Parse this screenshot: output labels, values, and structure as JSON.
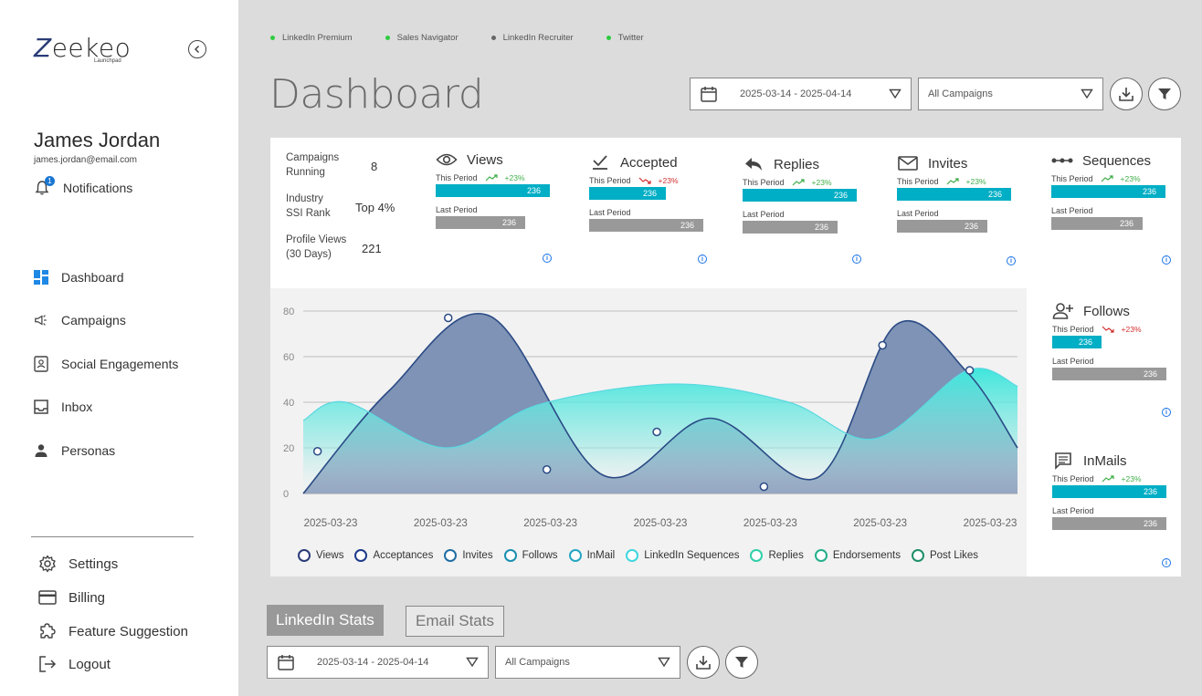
{
  "sidebar": {
    "logo_text": "eekeo",
    "logo_letter": "Z",
    "logo_sub": "Launchpad",
    "user_name": "James Jordan",
    "user_email": "james.jordan@email.com",
    "notifications_label": "Notifications",
    "notifications_count": "1",
    "nav": [
      {
        "label": "Dashboard",
        "icon": "dashboard-icon"
      },
      {
        "label": "Campaigns",
        "icon": "megaphone-icon"
      },
      {
        "label": "Social Engagements",
        "icon": "badge-icon"
      },
      {
        "label": "Inbox",
        "icon": "inbox-icon"
      },
      {
        "label": "Personas",
        "icon": "person-icon"
      }
    ],
    "bottom": [
      {
        "label": "Settings",
        "icon": "gear-icon"
      },
      {
        "label": "Billing",
        "icon": "card-icon"
      },
      {
        "label": "Feature Suggestion",
        "icon": "puzzle-icon"
      },
      {
        "label": "Logout",
        "icon": "logout-icon"
      }
    ]
  },
  "sources": [
    {
      "label": "LinkedIn Premium",
      "color": "#2ecc40"
    },
    {
      "label": "Sales Navigator",
      "color": "#2ecc40"
    },
    {
      "label": "LinkedIn Recruiter",
      "color": "#666666"
    },
    {
      "label": "Twitter",
      "color": "#2ecc40"
    }
  ],
  "header": {
    "title": "Dashboard",
    "date_range": "2025-03-14 - 2025-04-14",
    "campaign_select": "All Campaigns"
  },
  "kpis": [
    {
      "label_1": "Campaigns",
      "label_2": "Running",
      "value": "8"
    },
    {
      "label_1": "Industry",
      "label_2": "SSI Rank",
      "value": "Top 4%"
    },
    {
      "label_1": "Profile Views",
      "label_2": "(30 Days)",
      "value": "221"
    }
  ],
  "metrics": [
    {
      "name": "Views",
      "icon": "eye-icon",
      "this_label": "This Period",
      "change": "+23%",
      "trend": "up",
      "this_value": "236",
      "last_label": "Last Period",
      "last_value": "236"
    },
    {
      "name": "Accepted",
      "icon": "check-icon",
      "this_label": "This Period",
      "change": "+23%",
      "trend": "down",
      "this_value": "236",
      "last_label": "Last Period",
      "last_value": "236"
    },
    {
      "name": "Replies",
      "icon": "reply-icon",
      "this_label": "This Period",
      "change": "+23%",
      "trend": "up",
      "this_value": "236",
      "last_label": "Last Period",
      "last_value": "236"
    },
    {
      "name": "Invites",
      "icon": "mail-icon",
      "this_label": "This Period",
      "change": "+23%",
      "trend": "up",
      "this_value": "236",
      "last_label": "Last Period",
      "last_value": "236"
    },
    {
      "name": "Sequences",
      "icon": "sequence-icon",
      "this_label": "This Period",
      "change": "+23%",
      "trend": "up",
      "this_value": "236",
      "last_label": "Last Period",
      "last_value": "236"
    },
    {
      "name": "Follows",
      "icon": "add-person-icon",
      "this_label": "This Period",
      "change": "+23%",
      "trend": "down",
      "this_value": "236",
      "last_label": "Last Period",
      "last_value": "236"
    },
    {
      "name": "InMails",
      "icon": "chat-icon",
      "this_label": "This Period",
      "change": "+23%",
      "trend": "up",
      "this_value": "236",
      "last_label": "Last Period",
      "last_value": "236"
    }
  ],
  "chart_data": {
    "type": "area",
    "x": [
      "2025-03-23",
      "2025-03-23",
      "2025-03-23",
      "2025-03-23",
      "2025-03-23",
      "2025-03-23",
      "2025-03-23"
    ],
    "yticks": [
      0,
      20,
      40,
      60,
      80
    ],
    "ylim": [
      0,
      85
    ],
    "grid": true,
    "legend_position": "bottom",
    "series": [
      {
        "name": "Views",
        "color": "#2a3c77"
      },
      {
        "name": "Acceptances",
        "color": "#1e3a8a"
      },
      {
        "name": "Invites",
        "color": "#1f6fa3"
      },
      {
        "name": "Follows",
        "color": "#1a8fb0"
      },
      {
        "name": "InMail",
        "color": "#24a6c2"
      },
      {
        "name": "LinkedIn Sequences",
        "color": "#3fd6dd"
      },
      {
        "name": "Replies",
        "color": "#2fcfa9"
      },
      {
        "name": "Endorsements",
        "color": "#22b08a"
      },
      {
        "name": "Post Likes",
        "color": "#1e8f6a"
      }
    ],
    "dark_line": {
      "t": [
        0,
        0.12,
        0.26,
        0.42,
        0.57,
        0.72,
        0.83,
        0.93,
        1.0
      ],
      "y": [
        0,
        45,
        78,
        8,
        33,
        7,
        74,
        53,
        20
      ]
    },
    "light_area": {
      "t": [
        0,
        0.06,
        0.2,
        0.33,
        0.52,
        0.68,
        0.8,
        0.93,
        1.0
      ],
      "y": [
        32,
        40,
        20,
        39,
        48,
        40,
        24,
        54,
        47
      ]
    },
    "markers": [
      {
        "t": 0.02,
        "y": 18.5
      },
      {
        "t": 0.203,
        "y": 77
      },
      {
        "t": 0.341,
        "y": 10.5
      },
      {
        "t": 0.495,
        "y": 27
      },
      {
        "t": 0.645,
        "y": 3
      },
      {
        "t": 0.811,
        "y": 65
      },
      {
        "t": 0.933,
        "y": 54
      }
    ]
  },
  "bottom": {
    "tab_linkedin": "LinkedIn Stats",
    "tab_email": "Email Stats",
    "date_range": "2025-03-14 - 2025-04-14",
    "campaign_select": "All Campaigns"
  }
}
